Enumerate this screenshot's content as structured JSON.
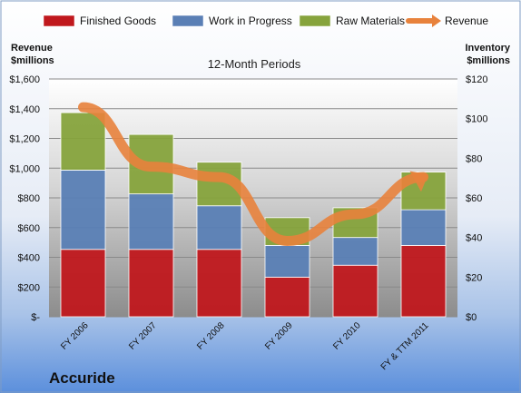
{
  "chart_data": {
    "type": "bar",
    "subtitle": "12-Month Periods",
    "company": "Accuride",
    "y_left": {
      "label_line1": "Revenue",
      "label_line2": "$millions",
      "ylim": [
        0,
        1600
      ],
      "ticks": [
        "$-",
        "$200",
        "$400",
        "$600",
        "$800",
        "$1,000",
        "$1,200",
        "$1,400",
        "$1,600"
      ]
    },
    "y_right": {
      "label_line1": "Inventory",
      "label_line2": "$millions",
      "ylim": [
        0,
        120
      ],
      "ticks": [
        "$0",
        "$20",
        "$40",
        "$60",
        "$80",
        "$100",
        "$120"
      ]
    },
    "categories": [
      "FY 2006",
      "FY 2007",
      "FY 2008",
      "FY 2009",
      "FY 2010",
      "FY & TTM 2011"
    ],
    "series": [
      {
        "name": "Finished Goods",
        "axis": "right",
        "color": "#c0181d",
        "values": [
          34,
          34,
          34,
          20,
          26,
          36
        ]
      },
      {
        "name": "Work in Progress",
        "axis": "right",
        "color": "#5a7fb5",
        "values": [
          40,
          28,
          22,
          16,
          14,
          18
        ]
      },
      {
        "name": "Raw Materials",
        "axis": "right",
        "color": "#86a33c",
        "values": [
          29,
          30,
          22,
          14,
          15,
          19
        ]
      },
      {
        "name": "Revenue",
        "axis": "left",
        "color": "#e8823c",
        "type": "line",
        "values": [
          1410,
          1010,
          940,
          510,
          690,
          940
        ]
      }
    ],
    "grid": true,
    "legend_position": "top"
  }
}
